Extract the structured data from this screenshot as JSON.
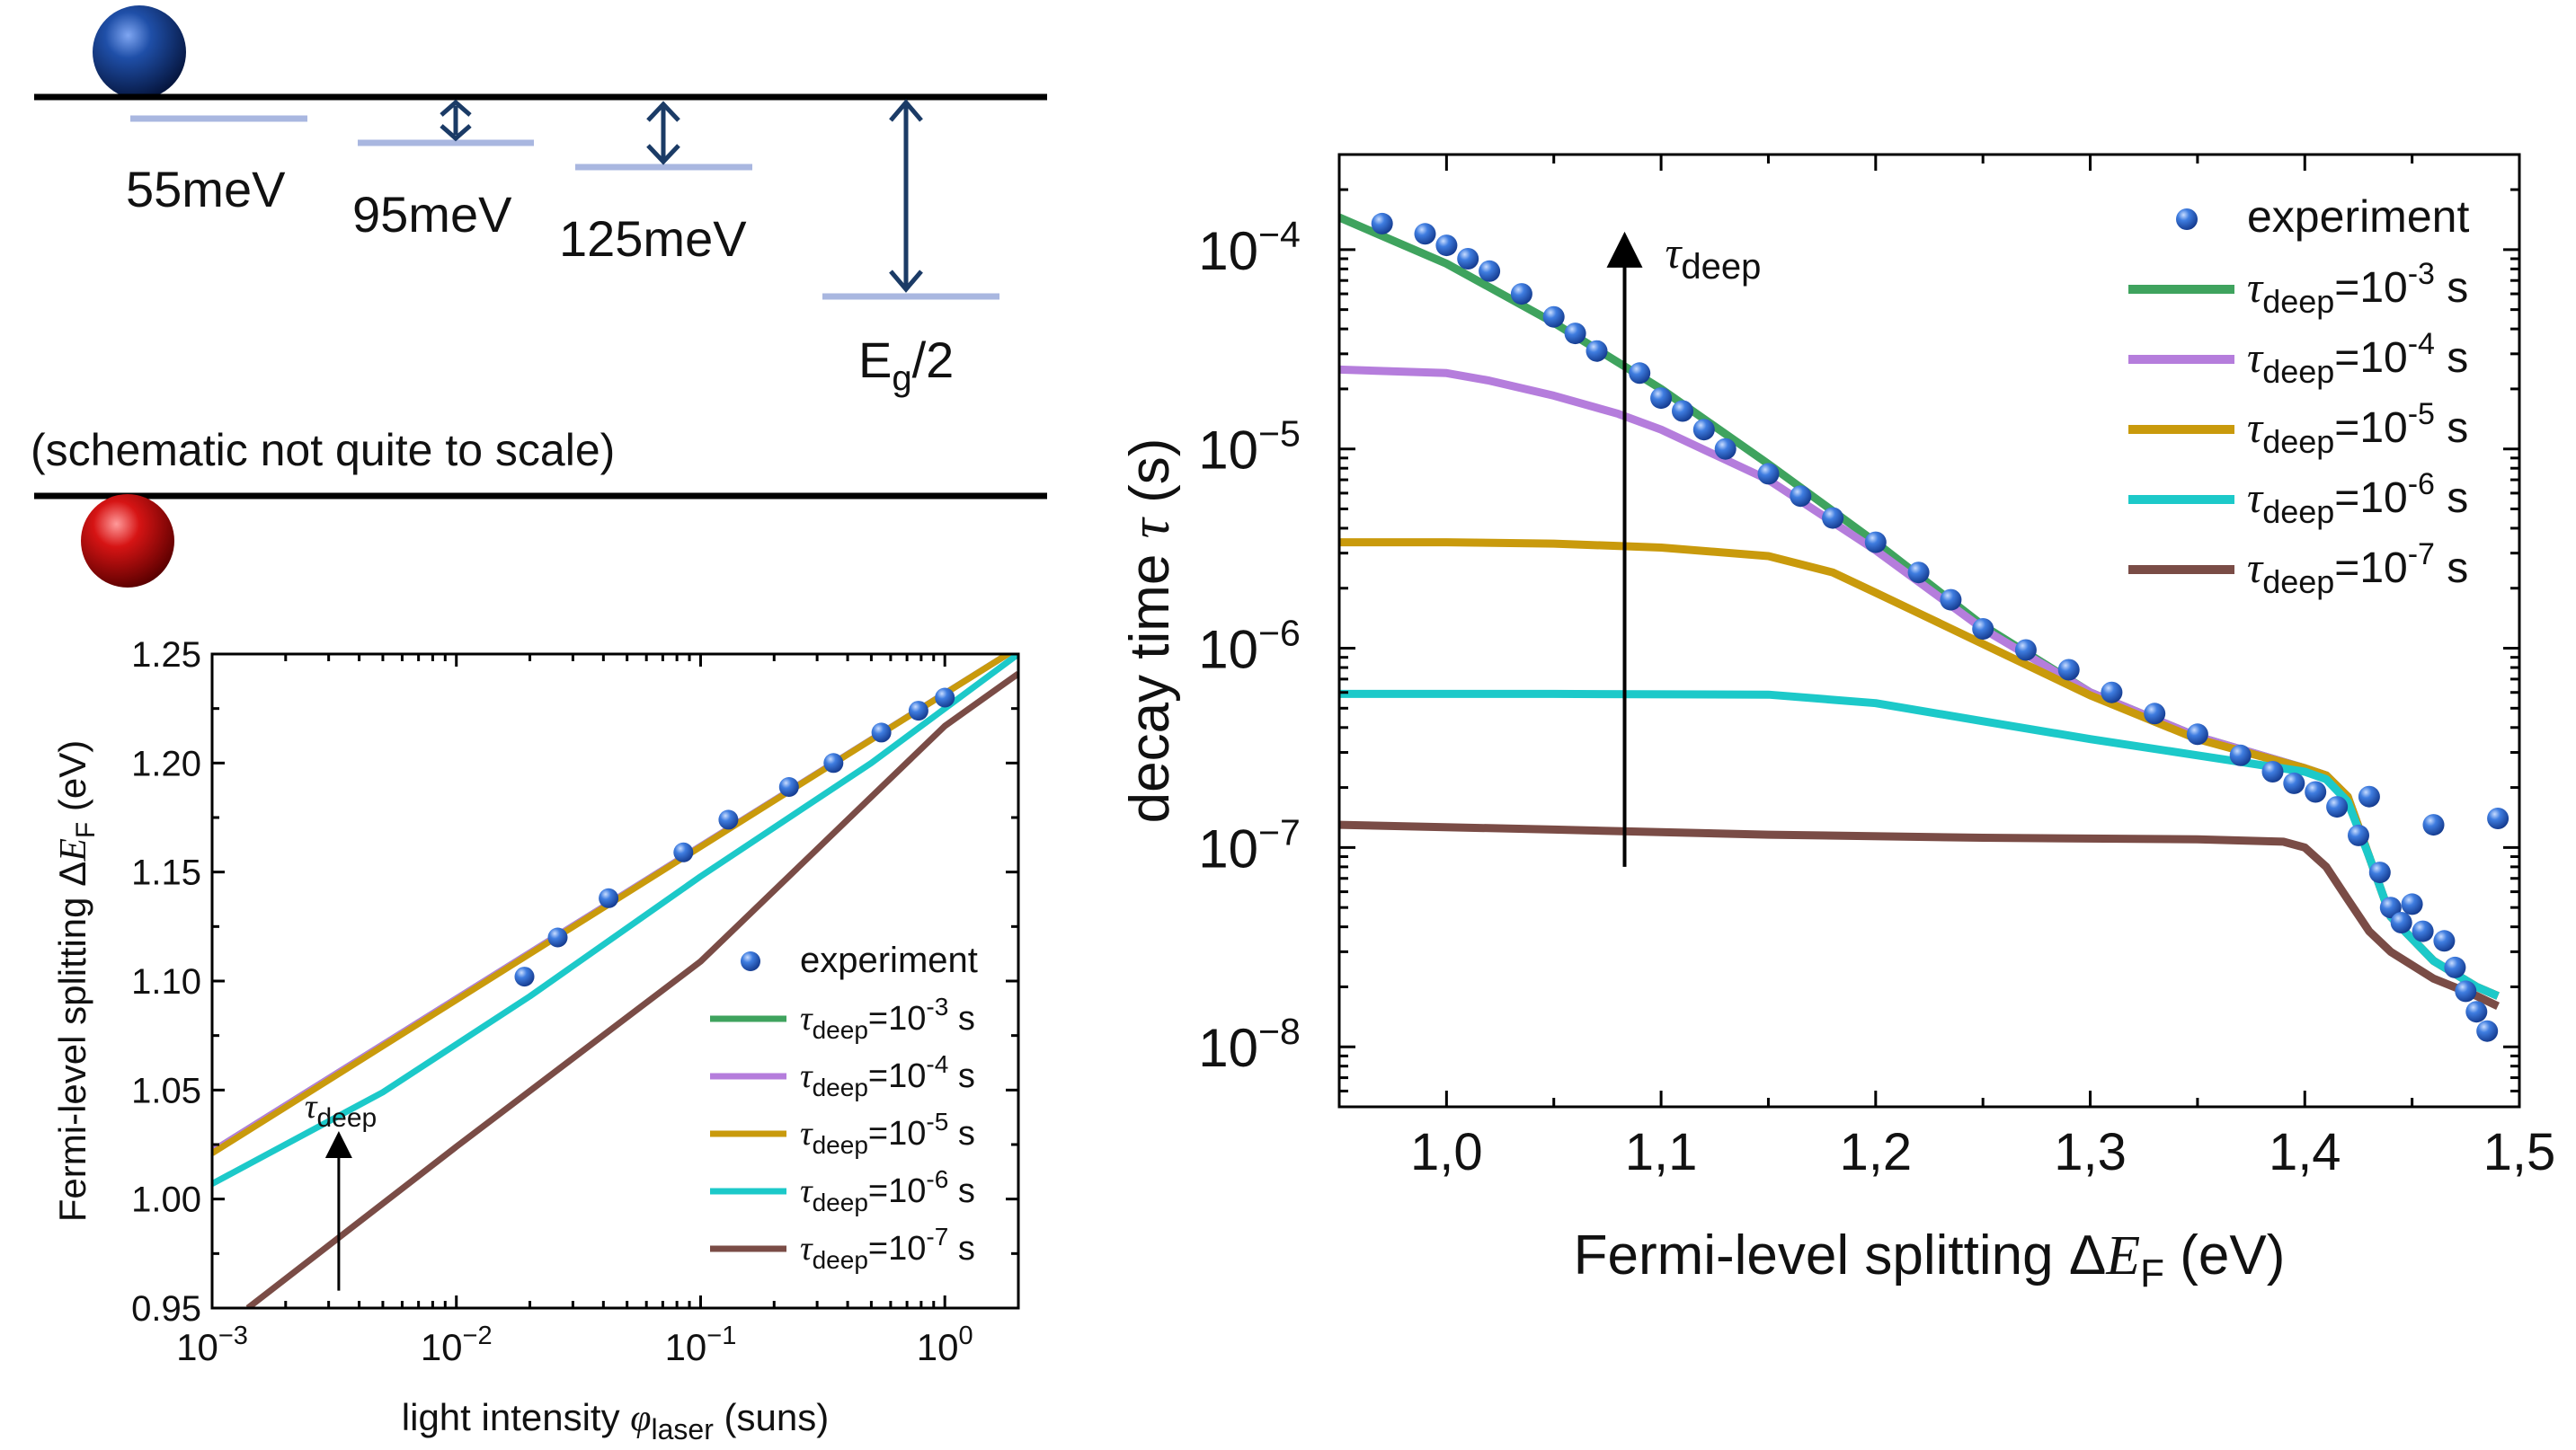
{
  "schematic": {
    "levels": [
      {
        "label": "55meV"
      },
      {
        "label": "95meV"
      },
      {
        "label": "125meV"
      },
      {
        "label_main": "E",
        "label_sub": "g",
        "label_tail": "/2"
      }
    ],
    "note": "(schematic not quite to scale)",
    "colors": {
      "band": "#000000",
      "level": "#a9b7e0",
      "arrow": "#1b3b66",
      "electron": "#0e2e78",
      "hole": "#cc1111"
    }
  },
  "legend_common": {
    "experiment": "experiment",
    "tau_symbol": "τ",
    "tau_sub": "deep",
    "eq": "=10",
    "unit": " s",
    "exponents": [
      "-3",
      "-4",
      "-5",
      "-6",
      "-7"
    ],
    "colors": [
      "#3fa35e",
      "#b57ddc",
      "#c99a0c",
      "#1cc9c9",
      "#7a4c46"
    ],
    "marker_color": "#2c63c6"
  },
  "chart_data": [
    {
      "id": "intensity",
      "type": "line",
      "title": "",
      "xlabel": {
        "pre": "light intensity ",
        "sym": "φ",
        "sub": "laser",
        "post": " (suns)"
      },
      "ylabel": {
        "pre": "Fermi-level splitting Δ",
        "sym": "E",
        "sub": "F",
        "post": " (eV)"
      },
      "xscale": "log",
      "xlim": [
        0.001,
        2
      ],
      "ylim": [
        0.95,
        1.25
      ],
      "xticks": [
        {
          "value": 0.001,
          "base": "10",
          "exp": "−3"
        },
        {
          "value": 0.01,
          "base": "10",
          "exp": "−2"
        },
        {
          "value": 0.1,
          "base": "10",
          "exp": "−1"
        },
        {
          "value": 1,
          "base": "10",
          "exp": "0"
        }
      ],
      "yticks": [
        "0.95",
        "1.00",
        "1.05",
        "1.10",
        "1.15",
        "1.20",
        "1.25"
      ],
      "annotation": {
        "symbol": "τ",
        "sub": "deep",
        "arrow_x": 0.0033,
        "arrow_from": 0.958,
        "arrow_to": 1.025
      },
      "experiment": {
        "x": [
          0.019,
          0.026,
          0.042,
          0.085,
          0.13,
          0.23,
          0.35,
          0.55,
          0.78,
          1.0
        ],
        "y": [
          1.102,
          1.12,
          1.138,
          1.159,
          1.174,
          1.189,
          1.2,
          1.214,
          1.224,
          1.23
        ]
      },
      "series": [
        {
          "label_exp": "-3",
          "x": [
            0.001,
            2
          ],
          "y": [
            1.022,
            1.253
          ]
        },
        {
          "label_exp": "-4",
          "x": [
            0.001,
            2
          ],
          "y": [
            1.022,
            1.253
          ]
        },
        {
          "label_exp": "-5",
          "x": [
            0.001,
            2
          ],
          "y": [
            1.021,
            1.253
          ]
        },
        {
          "label_exp": "-6",
          "x": [
            0.001,
            0.005,
            0.02,
            0.1,
            0.5,
            2
          ],
          "y": [
            1.007,
            1.049,
            1.093,
            1.148,
            1.2,
            1.25
          ]
        },
        {
          "label_exp": "-7",
          "x": [
            0.0014,
            0.01,
            0.1,
            1,
            2
          ],
          "y": [
            0.95,
            1.024,
            1.109,
            1.217,
            1.241
          ]
        }
      ]
    },
    {
      "id": "decay",
      "type": "scatter+line",
      "title": "",
      "xlabel": {
        "pre": "Fermi-level splitting Δ",
        "sym": "E",
        "sub": "F",
        "post": " (eV)"
      },
      "ylabel": {
        "pre": "decay time ",
        "sym": "τ",
        "post": " (s)"
      },
      "yscale": "log",
      "xlim": [
        0.95,
        1.5
      ],
      "ylim": [
        5e-09,
        0.0003
      ],
      "xticks": [
        "1,0",
        "1,1",
        "1,2",
        "1,3",
        "1,4",
        "1,5"
      ],
      "xtick_values": [
        1.0,
        1.1,
        1.2,
        1.3,
        1.4,
        1.5
      ],
      "yticks": [
        {
          "value": 1e-08,
          "base": "10",
          "exp": "−8"
        },
        {
          "value": 1e-07,
          "base": "10",
          "exp": "−7"
        },
        {
          "value": 1e-06,
          "base": "10",
          "exp": "−6"
        },
        {
          "value": 1e-05,
          "base": "10",
          "exp": "−5"
        },
        {
          "value": 0.0001,
          "base": "10",
          "exp": "−4"
        }
      ],
      "annotation": {
        "symbol": "τ",
        "sub": "deep",
        "arrow_x": 1.083,
        "arrow_from": 8e-08,
        "arrow_to": 0.0001
      },
      "experiment": {
        "x": [
          0.97,
          0.99,
          1.0,
          1.01,
          1.02,
          1.035,
          1.05,
          1.06,
          1.07,
          1.09,
          1.1,
          1.11,
          1.12,
          1.13,
          1.15,
          1.165,
          1.18,
          1.2,
          1.22,
          1.235,
          1.25,
          1.27,
          1.29,
          1.31,
          1.33,
          1.35,
          1.37,
          1.385,
          1.395,
          1.405,
          1.415,
          1.425,
          1.43,
          1.435,
          1.44,
          1.445,
          1.45,
          1.455,
          1.46,
          1.465,
          1.47,
          1.475,
          1.48,
          1.485,
          1.49
        ],
        "y": [
          0.000135,
          0.00012,
          0.000105,
          9e-05,
          7.8e-05,
          6e-05,
          4.6e-05,
          3.8e-05,
          3.1e-05,
          2.4e-05,
          1.8e-05,
          1.55e-05,
          1.25e-05,
          1e-05,
          7.5e-06,
          5.8e-06,
          4.5e-06,
          3.4e-06,
          2.4e-06,
          1.75e-06,
          1.25e-06,
          9.8e-07,
          7.8e-07,
          6e-07,
          4.7e-07,
          3.7e-07,
          2.9e-07,
          2.4e-07,
          2.1e-07,
          1.9e-07,
          1.6e-07,
          1.15e-07,
          1.8e-07,
          7.5e-08,
          5e-08,
          4.2e-08,
          5.2e-08,
          3.8e-08,
          1.3e-07,
          3.4e-08,
          2.5e-08,
          1.9e-08,
          1.5e-08,
          1.2e-08,
          1.4e-07
        ]
      },
      "series": [
        {
          "label_exp": "-3",
          "x": [
            0.95,
            1.0,
            1.05,
            1.1,
            1.15,
            1.2,
            1.25,
            1.3,
            1.35,
            1.4,
            1.41,
            1.42,
            1.43,
            1.44,
            1.46,
            1.48,
            1.49
          ],
          "y": [
            0.000145,
            8.5e-05,
            4.3e-05,
            2e-05,
            8.4e-06,
            3.4e-06,
            1.3e-06,
            6e-07,
            3.6e-07,
            2.5e-07,
            2.3e-07,
            1.8e-07,
            9e-08,
            4.5e-08,
            2.7e-08,
            2e-08,
            1.8e-08
          ]
        },
        {
          "label_exp": "-4",
          "x": [
            0.95,
            1.0,
            1.02,
            1.05,
            1.08,
            1.1,
            1.15,
            1.2,
            1.25,
            1.3,
            1.35,
            1.4,
            1.41,
            1.42,
            1.43,
            1.44,
            1.46,
            1.48,
            1.49
          ],
          "y": [
            2.5e-05,
            2.4e-05,
            2.2e-05,
            1.85e-05,
            1.5e-05,
            1.25e-05,
            7e-06,
            3.1e-06,
            1.25e-06,
            6e-07,
            3.6e-07,
            2.5e-07,
            2.3e-07,
            1.8e-07,
            9e-08,
            4.5e-08,
            2.7e-08,
            2e-08,
            1.8e-08
          ]
        },
        {
          "label_exp": "-5",
          "x": [
            0.95,
            1.0,
            1.05,
            1.1,
            1.15,
            1.18,
            1.2,
            1.22,
            1.25,
            1.3,
            1.35,
            1.4,
            1.41,
            1.42,
            1.43,
            1.44,
            1.46,
            1.48,
            1.49
          ],
          "y": [
            3.4e-06,
            3.4e-06,
            3.35e-06,
            3.2e-06,
            2.9e-06,
            2.4e-06,
            1.9e-06,
            1.5e-06,
            1.05e-06,
            5.8e-07,
            3.5e-07,
            2.5e-07,
            2.3e-07,
            1.8e-07,
            9e-08,
            4.5e-08,
            2.7e-08,
            2e-08,
            1.8e-08
          ]
        },
        {
          "label_exp": "-6",
          "x": [
            0.95,
            1.05,
            1.15,
            1.2,
            1.25,
            1.3,
            1.35,
            1.4,
            1.41,
            1.42,
            1.43,
            1.44,
            1.46,
            1.48,
            1.49
          ],
          "y": [
            5.9e-07,
            5.9e-07,
            5.85e-07,
            5.3e-07,
            4.3e-07,
            3.5e-07,
            2.9e-07,
            2.4e-07,
            2.2e-07,
            1.7e-07,
            9e-08,
            4.5e-08,
            2.7e-08,
            2e-08,
            1.8e-08
          ]
        },
        {
          "label_exp": "-7",
          "x": [
            0.95,
            1.05,
            1.15,
            1.25,
            1.35,
            1.39,
            1.4,
            1.41,
            1.42,
            1.43,
            1.44,
            1.46,
            1.48,
            1.49
          ],
          "y": [
            1.3e-07,
            1.23e-07,
            1.16e-07,
            1.12e-07,
            1.1e-07,
            1.07e-07,
            1e-07,
            8e-08,
            5.5e-08,
            3.8e-08,
            3e-08,
            2.2e-08,
            1.8e-08,
            1.6e-08
          ]
        }
      ]
    }
  ]
}
